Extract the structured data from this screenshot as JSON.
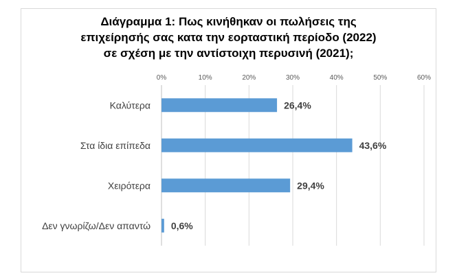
{
  "chart_data": {
    "type": "bar",
    "orientation": "horizontal",
    "title_lines": [
      "Διάγραμμα 1: Πως κινήθηκαν οι πωλήσεις της",
      "επιχείρησής σας κατα την εορταστική περίοδο (2022)",
      "σε σχέση με την αντίστοιχη περυσινή (2021);"
    ],
    "categories": [
      "Καλύτερα",
      "Στα ίδια επίπεδα",
      "Χειρότερα",
      "Δεν γνωρίζω/Δεν απαντώ"
    ],
    "values": [
      26.4,
      43.6,
      29.4,
      0.6
    ],
    "value_labels": [
      "26,4%",
      "43,6%",
      "29,4%",
      "0,6%"
    ],
    "xlim": [
      0,
      60
    ],
    "x_ticks": [
      0,
      10,
      20,
      30,
      40,
      50,
      60
    ],
    "x_tick_labels": [
      "0%",
      "10%",
      "20%",
      "30%",
      "40%",
      "50%",
      "60%"
    ],
    "axis_position": "top",
    "grid": true,
    "legend": "none",
    "bar_color": "#5b9bd5",
    "gridline_color": "#d9d9d9",
    "axis_line_color": "#bfbfbf"
  }
}
